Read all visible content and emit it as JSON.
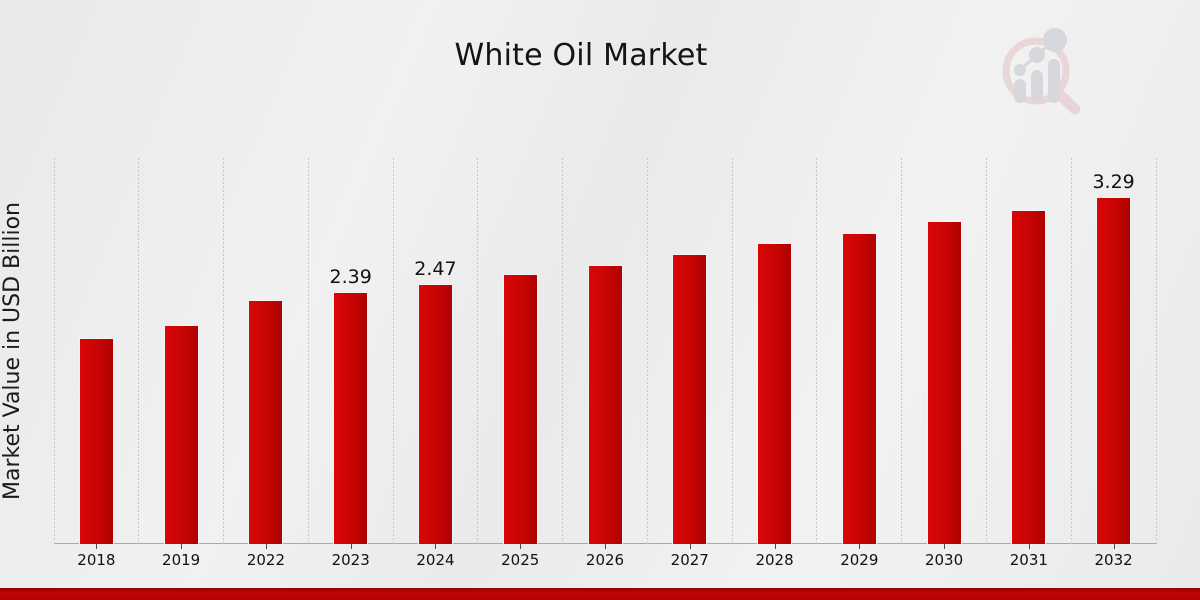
{
  "header": {
    "title": "White Oil Market",
    "logo_icon": "magnifier-growth-bars-watermark-icon"
  },
  "chart_data": {
    "type": "bar",
    "title": "White Oil Market",
    "xlabel": "",
    "ylabel": "Market Value in USD Billion",
    "categories": [
      "2018",
      "2019",
      "2022",
      "2023",
      "2024",
      "2025",
      "2026",
      "2027",
      "2028",
      "2029",
      "2030",
      "2031",
      "2032"
    ],
    "values": [
      1.95,
      2.08,
      2.31,
      2.39,
      2.47,
      2.56,
      2.65,
      2.75,
      2.85,
      2.95,
      3.06,
      3.17,
      3.29
    ],
    "data_labels": [
      "",
      "",
      "",
      "2.39",
      "2.47",
      "",
      "",
      "",
      "",
      "",
      "",
      "",
      "3.29"
    ],
    "ylim": [
      0,
      3.66
    ],
    "y_axis_ticks_visible": false,
    "grid": "vertical-dotted",
    "legend": "none",
    "bar_color": "#c40404"
  },
  "colors": {
    "bar_gradient_start": "#da0707",
    "bar_gradient_end": "#ad0202",
    "footer_bar": "#b10303",
    "background": "#ededed",
    "gridline": "#c6c6c6",
    "axis_line": "#a9a9a9",
    "text": "#111111",
    "logo_ring": "#e7cdcf",
    "logo_bars": "#ced0d4"
  }
}
